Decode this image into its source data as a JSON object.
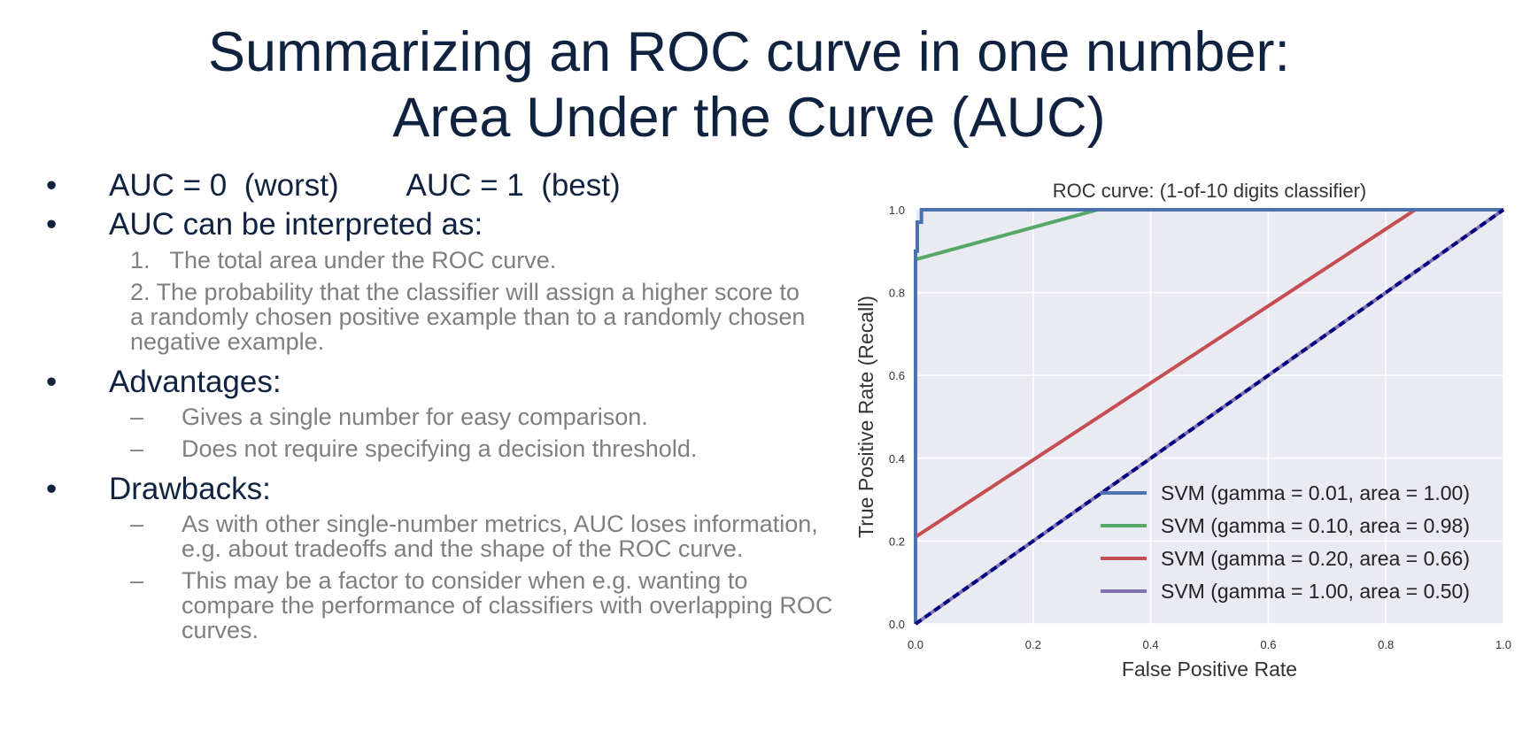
{
  "slide": {
    "title_line1": "Summarizing an ROC curve in one number:",
    "title_line2": "Area Under the Curve (AUC)",
    "bullets": [
      {
        "bullet": "•",
        "text": "AUC = 0  (worst)        AUC = 1  (best)"
      },
      {
        "bullet": "•",
        "text": "AUC can be interpreted as:"
      },
      {
        "bullet": "•",
        "text": "Advantages:"
      },
      {
        "bullet": "•",
        "text": "Drawbacks:"
      }
    ],
    "interpretations": [
      "1.   The total area under the ROC curve.",
      "2.  The probability that the classifier will assign a higher score to a randomly chosen positive example than to a randomly chosen negative example."
    ],
    "advantages": [
      {
        "dash": "–",
        "text": "Gives a single number for easy comparison."
      },
      {
        "dash": "–",
        "text": "Does not require specifying a decision threshold."
      }
    ],
    "drawbacks": [
      {
        "dash": "–",
        "text": "As with other single-number metrics, AUC loses information, e.g. about tradeoffs and the shape of the ROC curve."
      },
      {
        "dash": "–",
        "text": "This may be a factor to consider when e.g. wanting to compare the performance of classifiers with overlapping ROC curves."
      }
    ]
  },
  "chart_data": {
    "type": "line",
    "title": "ROC curve: (1-of-10 digits classifier)",
    "xlabel": "False Positive Rate",
    "ylabel": "True Positive Rate (Recall)",
    "xlim": [
      0.0,
      1.0
    ],
    "ylim": [
      0.0,
      1.0
    ],
    "xticks": [
      "0.0",
      "0.2",
      "0.4",
      "0.6",
      "0.8",
      "1.0"
    ],
    "yticks": [
      "0.0",
      "0.2",
      "0.4",
      "0.6",
      "0.8",
      "1.0"
    ],
    "grid": true,
    "background": "#eaeaf2",
    "legend_position": "lower-right",
    "series": [
      {
        "name": "SVM (gamma = 0.01, area = 1.00)",
        "color": "#4c72b0",
        "x": [
          0.0,
          0.0,
          0.003,
          0.003,
          0.01,
          0.01,
          1.0
        ],
        "y": [
          0.0,
          0.9,
          0.9,
          0.97,
          0.97,
          1.0,
          1.0
        ]
      },
      {
        "name": "SVM (gamma = 0.10, area = 0.98)",
        "color": "#55a868",
        "x": [
          0.0,
          0.0,
          0.31,
          1.0
        ],
        "y": [
          0.0,
          0.88,
          1.0,
          1.0
        ]
      },
      {
        "name": "SVM (gamma = 0.20, area = 0.66)",
        "color": "#c44e52",
        "x": [
          0.0,
          0.0,
          0.85,
          1.0
        ],
        "y": [
          0.02,
          0.21,
          1.0,
          1.0
        ]
      },
      {
        "name": "SVM (gamma = 1.00, area = 0.50)",
        "color": "#8172b2",
        "x": [
          0.0,
          1.0
        ],
        "y": [
          0.0,
          1.0
        ]
      }
    ],
    "reference_line": {
      "x": [
        0.0,
        1.0
      ],
      "y": [
        0.0,
        1.0
      ],
      "color": "#000080",
      "style": "dashed"
    }
  }
}
